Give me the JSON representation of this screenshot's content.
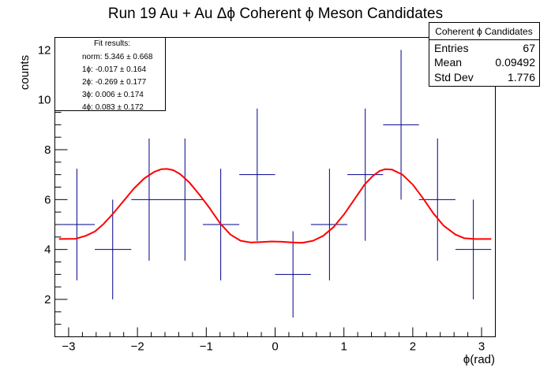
{
  "chart_data": {
    "type": "scatter",
    "title": "Run 19 Au + Au Δϕ Coherent ϕ Meson Candidates",
    "xlabel": "ϕ(rad)",
    "ylabel": "counts",
    "xlim": [
      -3.2,
      3.2
    ],
    "ylim": [
      0.5,
      12.5
    ],
    "xticks": [
      -3,
      -2,
      -1,
      0,
      1,
      2,
      3
    ],
    "yticks": [
      2,
      4,
      6,
      8,
      10,
      12
    ],
    "grid": false,
    "histogram": {
      "color": "#00008b",
      "points": [
        {
          "x": -2.88,
          "xlo": -3.14,
          "xhi": -2.62,
          "y": 5,
          "err": 2.24
        },
        {
          "x": -2.36,
          "xlo": -2.62,
          "xhi": -2.09,
          "y": 4,
          "err": 2.0
        },
        {
          "x": -1.83,
          "xlo": -2.09,
          "xhi": -1.57,
          "y": 6,
          "err": 2.45
        },
        {
          "x": -1.31,
          "xlo": -1.57,
          "xhi": -1.05,
          "y": 6,
          "err": 2.45
        },
        {
          "x": -0.79,
          "xlo": -1.05,
          "xhi": -0.52,
          "y": 5,
          "err": 2.24
        },
        {
          "x": -0.26,
          "xlo": -0.52,
          "xhi": 0.0,
          "y": 7,
          "err": 2.65
        },
        {
          "x": 0.26,
          "xlo": 0.0,
          "xhi": 0.52,
          "y": 3,
          "err": 1.73
        },
        {
          "x": 0.79,
          "xlo": 0.52,
          "xhi": 1.05,
          "y": 5,
          "err": 2.24
        },
        {
          "x": 1.31,
          "xlo": 1.05,
          "xhi": 1.57,
          "y": 7,
          "err": 2.65
        },
        {
          "x": 1.83,
          "xlo": 1.57,
          "xhi": 2.09,
          "y": 9,
          "err": 3.0
        },
        {
          "x": 2.36,
          "xlo": 2.09,
          "xhi": 2.62,
          "y": 6,
          "err": 2.45
        },
        {
          "x": 2.88,
          "xlo": 2.62,
          "xhi": 3.14,
          "y": 4,
          "err": 2.0
        }
      ]
    },
    "fit": {
      "color": "#ff0000",
      "x": [
        -3.14,
        -2.9,
        -2.75,
        -2.62,
        -2.5,
        -2.35,
        -2.2,
        -2.05,
        -1.9,
        -1.75,
        -1.65,
        -1.57,
        -1.48,
        -1.38,
        -1.25,
        -1.1,
        -0.95,
        -0.8,
        -0.65,
        -0.5,
        -0.35,
        -0.2,
        -0.05,
        0.1,
        0.25,
        0.4,
        0.55,
        0.7,
        0.85,
        1.0,
        1.15,
        1.3,
        1.42,
        1.52,
        1.6,
        1.7,
        1.85,
        2.0,
        2.15,
        2.3,
        2.45,
        2.62,
        2.75,
        2.9,
        3.14
      ],
      "y": [
        4.42,
        4.43,
        4.55,
        4.72,
        5.0,
        5.45,
        5.95,
        6.45,
        6.85,
        7.12,
        7.22,
        7.23,
        7.18,
        7.02,
        6.7,
        6.2,
        5.65,
        5.05,
        4.6,
        4.35,
        4.28,
        4.3,
        4.32,
        4.31,
        4.28,
        4.27,
        4.35,
        4.55,
        4.9,
        5.4,
        6.0,
        6.6,
        6.95,
        7.15,
        7.22,
        7.2,
        7.0,
        6.6,
        6.05,
        5.45,
        4.95,
        4.6,
        4.45,
        4.42,
        4.42
      ]
    },
    "fit_box": {
      "title": "Fit results:",
      "lines": [
        "norm: 5.346 ± 0.668",
        "1ϕ: -0.017 ± 0.164",
        "2ϕ: -0.269 ± 0.177",
        "3ϕ: 0.006 ± 0.174",
        "4ϕ: 0.083 ± 0.172"
      ]
    },
    "stats_box": {
      "title": "Coherent ϕ Candidates",
      "rows": [
        {
          "label": "Entries",
          "value": "67"
        },
        {
          "label": "Mean",
          "value": "0.09492"
        },
        {
          "label": "Std Dev",
          "value": "1.776"
        }
      ]
    }
  }
}
